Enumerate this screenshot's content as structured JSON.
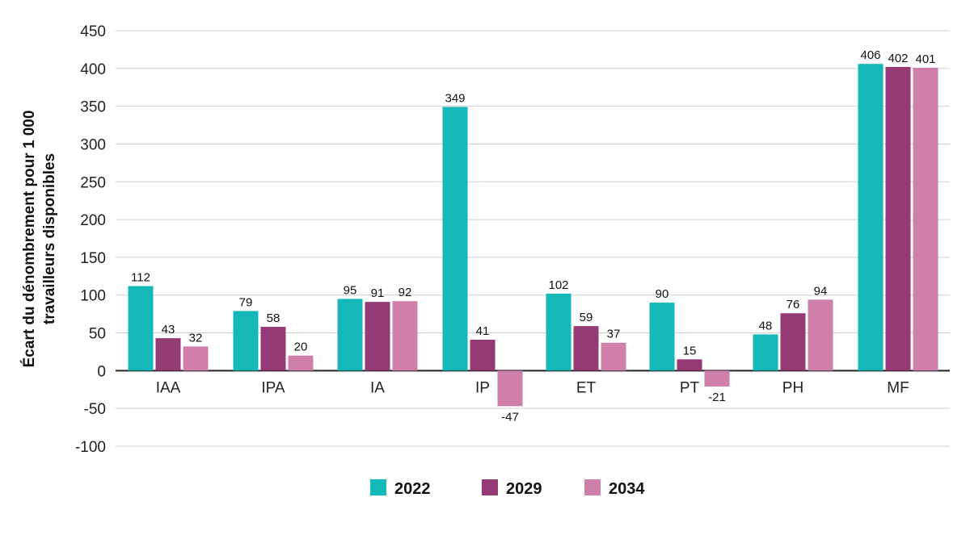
{
  "chart_data": {
    "type": "bar",
    "ylabel_line1": "Écart du dénombrement pour 1 000",
    "ylabel_line2": "travailleurs disponibles",
    "xlabel": "",
    "ylim": [
      -100,
      450
    ],
    "yticks": [
      450,
      400,
      350,
      300,
      250,
      200,
      150,
      100,
      50,
      0,
      -50,
      -100
    ],
    "ytick_labels": [
      "450",
      "400",
      "350",
      "300",
      "250",
      "200",
      "150",
      "100",
      "50",
      "0",
      "-50",
      "-100"
    ],
    "categories": [
      "IAA",
      "IPA",
      "IA",
      "IP",
      "ET",
      "PT",
      "PH",
      "MF"
    ],
    "series": [
      {
        "name": "2022",
        "color": "#14b8b8",
        "values": [
          112,
          79,
          95,
          349,
          102,
          90,
          48,
          406
        ]
      },
      {
        "name": "2029",
        "color": "#953a74",
        "values": [
          43,
          58,
          91,
          41,
          59,
          15,
          76,
          402
        ]
      },
      {
        "name": "2034",
        "color": "#cf80aa",
        "values": [
          32,
          20,
          92,
          -47,
          37,
          -21,
          94,
          401
        ]
      }
    ],
    "grid": true,
    "legend_position": "bottom-center"
  }
}
